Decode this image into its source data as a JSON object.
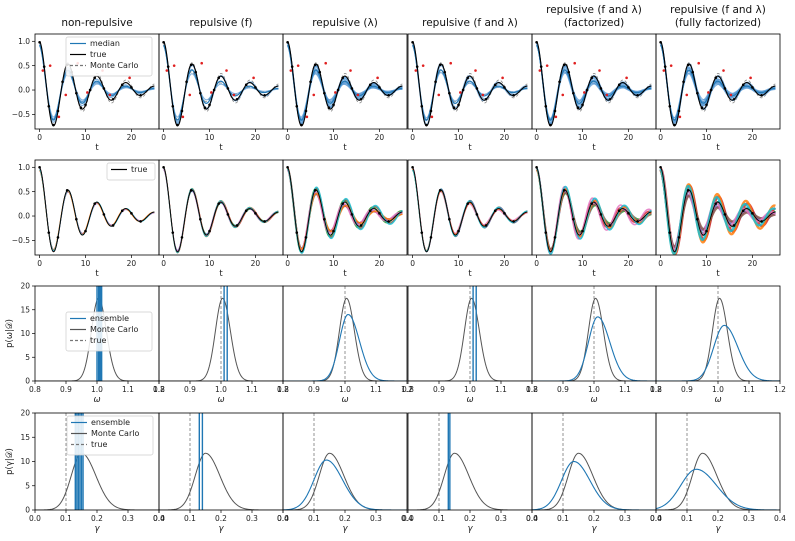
{
  "column_titles": [
    {
      "line1": "non-repulsive",
      "line2": ""
    },
    {
      "line1": "repulsive (f)",
      "line2": ""
    },
    {
      "line1": "repulsive (λ)",
      "line2": ""
    },
    {
      "line1": "repulsive (f and λ)",
      "line2": ""
    },
    {
      "line1": "repulsive (f and λ)",
      "line2": "(factorized)"
    },
    {
      "line1": "repulsive (f and λ)",
      "line2": "(fully factorized)"
    }
  ],
  "chart_data": [
    {
      "type": "line",
      "row": 1,
      "xlabel": "t",
      "ylabel": "",
      "xlim": [
        -1,
        26
      ],
      "ylim": [
        -0.8,
        1.15
      ],
      "xticks": [
        0,
        10,
        20
      ],
      "yticks": [
        -0.5,
        0.0,
        0.5,
        1.0
      ],
      "ytick_labels": [
        "−0.5",
        "0.0",
        "0.5",
        "1.0"
      ],
      "true_curve": {
        "omega": 1.0,
        "gamma": 0.1,
        "t_range": [
          0,
          25
        ]
      },
      "observations_t": [
        0,
        1,
        2,
        3,
        4,
        5,
        6,
        7,
        8,
        9,
        10,
        11,
        12,
        14,
        16,
        18,
        20,
        22
      ],
      "outlier_points": [
        [
          0.7,
          0.4
        ],
        [
          2.3,
          0.5
        ],
        [
          4.2,
          -0.55
        ],
        [
          5.7,
          -0.1
        ],
        [
          8.3,
          0.55
        ],
        [
          10.4,
          -0.05
        ],
        [
          13.7,
          0.4
        ],
        [
          15.3,
          -0.1
        ],
        [
          19.6,
          0.25
        ]
      ],
      "series": [
        {
          "name": "median",
          "color": "#1f77b4"
        },
        {
          "name": "true",
          "color": "#000000"
        },
        {
          "name": "Monte Carlo",
          "color": "#777777",
          "dashed": true
        }
      ],
      "legend_panel": 0,
      "legend_loc": "top-right"
    },
    {
      "type": "line",
      "row": 2,
      "xlabel": "t",
      "ylabel": "",
      "xlim": [
        -1,
        26
      ],
      "ylim": [
        -0.8,
        1.15
      ],
      "xticks": [
        0,
        10,
        20
      ],
      "yticks": [
        -0.5,
        0.0,
        0.5,
        1.0
      ],
      "ytick_labels": [
        "−0.5",
        "0.0",
        "0.5",
        "1.0"
      ],
      "true_curve": {
        "omega": 1.0,
        "gamma": 0.1,
        "t_range": [
          0,
          25
        ]
      },
      "observations": [
        [
          0,
          0.9
        ],
        [
          2,
          0.75
        ],
        [
          4,
          -0.55
        ],
        [
          6,
          -0.25
        ],
        [
          8,
          0.4
        ],
        [
          10,
          -0.05
        ],
        [
          12,
          -0.2
        ],
        [
          14,
          0.2
        ],
        [
          16,
          0.05
        ],
        [
          18,
          -0.1
        ],
        [
          20,
          0.05
        ],
        [
          22,
          0.15
        ]
      ],
      "ensemble_colors": [
        "#1f77b4",
        "#2ca02c",
        "#d62728",
        "#9467bd",
        "#8c564b",
        "#e377c2",
        "#ff7f0e",
        "#17becf"
      ],
      "series": [
        {
          "name": "true",
          "color": "#000000"
        }
      ],
      "legend_panel": 0,
      "legend_loc": "top-right"
    },
    {
      "type": "line",
      "row": 3,
      "xlabel": "ω",
      "ylabel": "p(ω|𝒟)",
      "xlim": [
        0.8,
        1.2
      ],
      "ylim": [
        0,
        20
      ],
      "xticks": [
        0.8,
        0.9,
        1.0,
        1.1,
        1.2
      ],
      "xtick_labels": [
        "0.8",
        "0.9",
        "1.0",
        "1.1",
        "1.2"
      ],
      "yticks": [
        0,
        5,
        10,
        15,
        20
      ],
      "true_value": 1.0,
      "monte_carlo": {
        "mean": 1.005,
        "sd": 0.023,
        "peak": 17.4
      },
      "ensemble_per_panel": [
        {
          "lines": [
            1.0,
            1.005,
            1.008,
            1.012,
            1.015
          ]
        },
        {
          "lines": [
            1.01,
            1.02
          ]
        },
        {
          "mean": 1.01,
          "sd": 0.028,
          "peak": 14
        },
        {
          "lines": [
            1.01,
            1.02
          ]
        },
        {
          "mean": 1.012,
          "sd": 0.03,
          "peak": 13.5
        },
        {
          "mean": 1.02,
          "sd": 0.034,
          "peak": 11.7
        }
      ],
      "series": [
        {
          "name": "ensemble",
          "color": "#1f77b4"
        },
        {
          "name": "Monte Carlo",
          "color": "#555555"
        },
        {
          "name": "true",
          "color": "#777777",
          "dashed": true
        }
      ],
      "legend_panel": 0,
      "legend_loc": "center-left"
    },
    {
      "type": "line",
      "row": 4,
      "xlabel": "γ",
      "ylabel": "p(γ|𝒟)",
      "xlim": [
        0.0,
        0.4
      ],
      "ylim": [
        0,
        20
      ],
      "xticks": [
        0.0,
        0.1,
        0.2,
        0.3,
        0.4
      ],
      "xtick_labels": [
        "0.0",
        "0.1",
        "0.2",
        "0.3",
        "0.4"
      ],
      "yticks": [
        0,
        5,
        10,
        15,
        20
      ],
      "true_value": 0.1,
      "monte_carlo": {
        "mean": 0.15,
        "sd": 0.033,
        "peak": 11.7
      },
      "ensemble_per_panel": [
        {
          "lines": [
            0.13,
            0.135,
            0.14,
            0.145,
            0.15,
            0.155
          ]
        },
        {
          "lines": [
            0.13,
            0.14
          ]
        },
        {
          "mean": 0.14,
          "sd": 0.04,
          "peak": 10.3
        },
        {
          "lines": [
            0.13,
            0.135
          ]
        },
        {
          "mean": 0.135,
          "sd": 0.04,
          "peak": 10
        },
        {
          "mean": 0.13,
          "sd": 0.05,
          "peak": 8.4
        }
      ],
      "series": [
        {
          "name": "ensemble",
          "color": "#1f77b4"
        },
        {
          "name": "Monte Carlo",
          "color": "#555555"
        },
        {
          "name": "true",
          "color": "#777777",
          "dashed": true
        }
      ],
      "legend_panel": 0,
      "legend_loc": "top-right"
    }
  ]
}
